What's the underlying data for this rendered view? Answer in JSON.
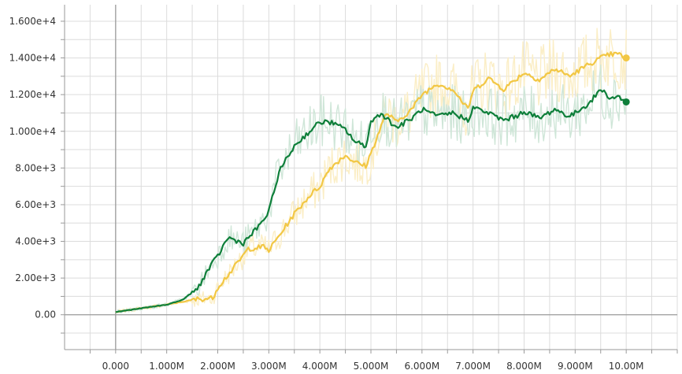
{
  "chart_data": {
    "type": "line",
    "title": "",
    "xlabel": "",
    "ylabel": "",
    "xlim": [
      -1.0,
      11.0
    ],
    "ylim": [
      -1900,
      16900
    ],
    "grid": true,
    "legend": "none",
    "x_ticks": [
      {
        "value": 0,
        "label": "0.000"
      },
      {
        "value": 1,
        "label": "1.000M"
      },
      {
        "value": 2,
        "label": "2.000M"
      },
      {
        "value": 3,
        "label": "3.000M"
      },
      {
        "value": 4,
        "label": "4.000M"
      },
      {
        "value": 5,
        "label": "5.000M"
      },
      {
        "value": 6,
        "label": "6.000M"
      },
      {
        "value": 7,
        "label": "7.000M"
      },
      {
        "value": 8,
        "label": "8.000M"
      },
      {
        "value": 9,
        "label": "9.000M"
      },
      {
        "value": 10,
        "label": "10.00M"
      }
    ],
    "y_ticks": [
      {
        "value": 0,
        "label": "0.00"
      },
      {
        "value": 2000,
        "label": "2.00e+3"
      },
      {
        "value": 4000,
        "label": "4.00e+3"
      },
      {
        "value": 6000,
        "label": "6.00e+3"
      },
      {
        "value": 8000,
        "label": "8.00e+3"
      },
      {
        "value": 10000,
        "label": "1.000e+4"
      },
      {
        "value": 12000,
        "label": "1.200e+4"
      },
      {
        "value": 14000,
        "label": "1.400e+4"
      },
      {
        "value": 16000,
        "label": "1.600e+4"
      }
    ],
    "series": [
      {
        "color": "#f2c744",
        "raw_color": "#fbeec6",
        "x": [
          0,
          0.5,
          1.0,
          1.3,
          1.6,
          1.9,
          2.0,
          2.3,
          2.6,
          2.9,
          3.0,
          3.3,
          3.5,
          3.8,
          4.0,
          4.2,
          4.5,
          4.7,
          4.9,
          5.0,
          5.3,
          5.5,
          5.8,
          6.0,
          6.3,
          6.6,
          6.9,
          7.0,
          7.3,
          7.6,
          8.0,
          8.3,
          8.6,
          8.9,
          9.0,
          9.3,
          9.5,
          9.7,
          9.85,
          10.0
        ],
        "values": [
          150,
          350,
          550,
          700,
          850,
          900,
          1500,
          2500,
          3600,
          3700,
          3500,
          4700,
          5500,
          6500,
          7000,
          8000,
          8700,
          8300,
          8100,
          8800,
          11000,
          10500,
          11200,
          12000,
          12600,
          12300,
          11200,
          12200,
          12900,
          12300,
          13200,
          12800,
          13400,
          13000,
          13200,
          13700,
          14000,
          14200,
          14200,
          14000
        ]
      },
      {
        "color": "#0e7f3a",
        "raw_color": "#cfe6d8",
        "x": [
          0,
          0.5,
          1.0,
          1.3,
          1.6,
          1.8,
          2.0,
          2.2,
          2.5,
          2.8,
          3.0,
          3.2,
          3.5,
          3.8,
          4.0,
          4.2,
          4.5,
          4.7,
          4.9,
          5.0,
          5.2,
          5.5,
          5.8,
          6.0,
          6.3,
          6.6,
          6.9,
          7.0,
          7.3,
          7.6,
          7.9,
          8.0,
          8.3,
          8.6,
          8.9,
          9.0,
          9.3,
          9.5,
          9.7,
          9.85,
          10.0
        ],
        "values": [
          150,
          350,
          550,
          800,
          1400,
          2400,
          3200,
          4200,
          3900,
          4800,
          5600,
          7800,
          9200,
          10000,
          10500,
          10500,
          10100,
          9400,
          9200,
          10500,
          11000,
          10200,
          10700,
          11200,
          10800,
          11000,
          10600,
          11300,
          11000,
          10600,
          10900,
          11100,
          10700,
          11200,
          10800,
          11000,
          11600,
          12300,
          11800,
          11900,
          11600
        ]
      }
    ]
  }
}
